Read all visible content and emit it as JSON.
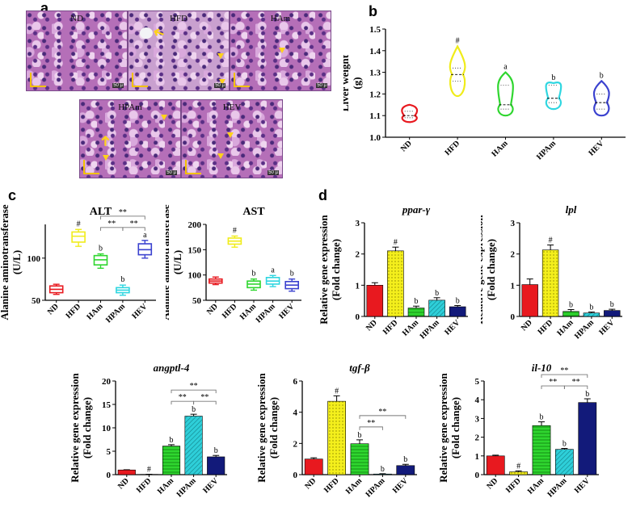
{
  "panels": {
    "a": "a",
    "b": "b",
    "c": "c",
    "d": "d"
  },
  "micrographs": [
    {
      "label": "ND",
      "scale": "50 µ"
    },
    {
      "label": "HFD",
      "scale": "50 µ"
    },
    {
      "label": "HAm",
      "scale": "50 µ"
    },
    {
      "label": "HPAm",
      "scale": "50 µ"
    },
    {
      "label": "HEV",
      "scale": "50 µ"
    }
  ],
  "colors": {
    "ND": "#e8191f",
    "HFD": "#f0ec1a",
    "HAm": "#2fd62f",
    "HPAm": "#2ed6e0",
    "HEV": "#3b42cf",
    "HEV_bar": "#121a7a"
  },
  "chart_data": [
    {
      "id": "liver-weight",
      "type": "violin",
      "panel": "b",
      "title": "",
      "ylabel": "Liver weight (g)",
      "xlabel": "",
      "categories": [
        "ND",
        "HFD",
        "HAm",
        "HPAm",
        "HEV"
      ],
      "ylim": [
        1.0,
        1.5
      ],
      "yticks": [
        "1.0",
        "1.1",
        "1.2",
        "1.3",
        "1.4",
        "1.5"
      ],
      "medians": [
        1.1,
        1.29,
        1.15,
        1.18,
        1.16
      ],
      "q1": [
        1.09,
        1.26,
        1.13,
        1.16,
        1.13
      ],
      "q3": [
        1.12,
        1.32,
        1.24,
        1.24,
        1.2
      ],
      "min": [
        1.07,
        1.19,
        1.1,
        1.13,
        1.1
      ],
      "max": [
        1.15,
        1.42,
        1.3,
        1.25,
        1.26
      ],
      "annotations": [
        "",
        "#",
        "a",
        "b",
        "b"
      ]
    },
    {
      "id": "alt",
      "type": "box",
      "panel": "c",
      "title": "ALT",
      "ylabel": "Alanine aminotransferase (U/L)",
      "categories": [
        "ND",
        "HFD",
        "HAm",
        "HPAm",
        "HEV"
      ],
      "ylim": [
        50,
        140
      ],
      "yticks": [
        "50",
        "100"
      ],
      "min": [
        57,
        114,
        88,
        56,
        100
      ],
      "q1": [
        59,
        119,
        92,
        59,
        104
      ],
      "median": [
        63,
        126,
        98,
        62,
        110
      ],
      "q3": [
        67,
        131,
        103,
        65,
        117
      ],
      "max": [
        69,
        134,
        105,
        68,
        121
      ],
      "annotations": [
        "",
        "#",
        "b",
        "b",
        "a"
      ],
      "significance": [
        {
          "from": 2,
          "to": 4,
          "label": "**",
          "level": 1
        },
        {
          "from": 2,
          "to": 3,
          "label": "**",
          "level": 0
        },
        {
          "from": 3,
          "to": 4,
          "label": "**",
          "level": 0
        }
      ]
    },
    {
      "id": "ast",
      "type": "box",
      "panel": "c",
      "title": "AST",
      "ylabel": "Alanine aminotransferase (U/L)",
      "categories": [
        "ND",
        "HFD",
        "HAm",
        "HPAm",
        "HEV"
      ],
      "ylim": [
        50,
        200
      ],
      "yticks": [
        "50",
        "100",
        "150",
        "200"
      ],
      "min": [
        81,
        155,
        70,
        77,
        68
      ],
      "q1": [
        84,
        161,
        75,
        82,
        73
      ],
      "median": [
        88,
        167,
        82,
        88,
        80
      ],
      "q3": [
        92,
        173,
        88,
        95,
        87
      ],
      "max": [
        96,
        177,
        92,
        99,
        92
      ],
      "annotations": [
        "",
        "#",
        "b",
        "a",
        "b"
      ]
    },
    {
      "id": "ppar-gamma",
      "type": "bar",
      "panel": "d",
      "title": "ppar-γ",
      "ylabel": "Relative gene expression (Fold change)",
      "categories": [
        "ND",
        "HFD",
        "HAm",
        "HPAm",
        "HEV"
      ],
      "values": [
        1.0,
        2.1,
        0.27,
        0.52,
        0.31
      ],
      "errors": [
        0.08,
        0.12,
        0.06,
        0.08,
        0.04
      ],
      "ylim": [
        0,
        3
      ],
      "yticks": [
        "0",
        "1",
        "2",
        "3"
      ],
      "annotations": [
        "",
        "#",
        "b",
        "b",
        "b"
      ]
    },
    {
      "id": "lpl",
      "type": "bar",
      "panel": "d",
      "title": "lpl",
      "ylabel": "Relative gene expression (Fold change)",
      "categories": [
        "ND",
        "HFD",
        "HAm",
        "HPAm",
        "HEV"
      ],
      "values": [
        1.02,
        2.13,
        0.16,
        0.11,
        0.19
      ],
      "errors": [
        0.18,
        0.16,
        0.06,
        0.03,
        0.04
      ],
      "ylim": [
        0,
        3
      ],
      "yticks": [
        "0",
        "1",
        "2",
        "3"
      ],
      "annotations": [
        "",
        "#",
        "b",
        "b",
        "b"
      ]
    },
    {
      "id": "angptl-4",
      "type": "bar",
      "panel": "d",
      "title": "angptl-4",
      "ylabel": "Relative gene expression (Fold change)",
      "categories": [
        "ND",
        "HFD",
        "HAm",
        "HPAm",
        "HEV"
      ],
      "values": [
        1.0,
        0.05,
        6.1,
        12.5,
        3.8
      ],
      "errors": [
        0.05,
        0.03,
        0.3,
        0.4,
        0.3
      ],
      "ylim": [
        0,
        20
      ],
      "yticks": [
        "0",
        "5",
        "10",
        "15",
        "20"
      ],
      "annotations": [
        "",
        "#",
        "b",
        "b",
        "b"
      ],
      "significance": [
        {
          "from": 2,
          "to": 4,
          "label": "**",
          "level": 1
        },
        {
          "from": 2,
          "to": 3,
          "label": "**",
          "level": 0
        },
        {
          "from": 3,
          "to": 4,
          "label": "**",
          "level": 0
        }
      ]
    },
    {
      "id": "tgf-beta",
      "type": "bar",
      "panel": "d",
      "title": "tgf-β",
      "ylabel": "Relative gene expression (Fold change)",
      "categories": [
        "ND",
        "HFD",
        "HAm",
        "HPAm",
        "HEV"
      ],
      "values": [
        1.0,
        4.7,
        1.98,
        0.04,
        0.58
      ],
      "errors": [
        0.08,
        0.35,
        0.25,
        0.02,
        0.08
      ],
      "ylim": [
        0,
        6
      ],
      "yticks": [
        "0",
        "2",
        "4",
        "6"
      ],
      "annotations": [
        "",
        "#",
        "b",
        "b",
        "b"
      ],
      "significance": [
        {
          "from": 2,
          "to": 4,
          "label": "**",
          "level": 1
        },
        {
          "from": 2,
          "to": 3,
          "label": "**",
          "level": 0
        }
      ]
    },
    {
      "id": "il-10",
      "type": "bar",
      "panel": "d",
      "title": "il-10",
      "ylabel": "Relative gene expression (Fold change)",
      "categories": [
        "ND",
        "HFD",
        "HAm",
        "HPAm",
        "HEV"
      ],
      "values": [
        1.0,
        0.15,
        2.62,
        1.35,
        3.85
      ],
      "errors": [
        0.04,
        0.05,
        0.2,
        0.05,
        0.2
      ],
      "ylim": [
        0,
        5
      ],
      "yticks": [
        "0",
        "1",
        "2",
        "3",
        "4",
        "5"
      ],
      "annotations": [
        "",
        "#",
        "b",
        "b",
        "b"
      ],
      "significance": [
        {
          "from": 2,
          "to": 4,
          "label": "**",
          "level": 1
        },
        {
          "from": 2,
          "to": 3,
          "label": "**",
          "level": 0
        },
        {
          "from": 3,
          "to": 4,
          "label": "**",
          "level": 0
        }
      ]
    }
  ]
}
